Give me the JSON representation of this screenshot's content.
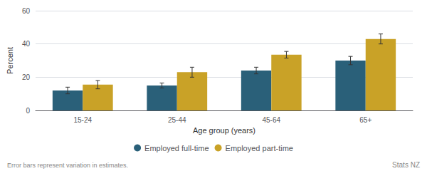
{
  "chart_data": {
    "type": "bar",
    "categories": [
      "15-24",
      "25-44",
      "45-64",
      "65+"
    ],
    "series": [
      {
        "name": "Employed full-time",
        "color": "#2a6079",
        "values": [
          12,
          15,
          24,
          30
        ],
        "errors": [
          2,
          1.5,
          2,
          2.5
        ]
      },
      {
        "name": "Employed part-time",
        "color": "#c9a227",
        "values": [
          15.5,
          23,
          33.5,
          43
        ],
        "errors": [
          2.5,
          3,
          2,
          3
        ]
      }
    ],
    "xlabel": "Age group (years)",
    "ylabel": "Percent",
    "ylim": [
      0,
      60
    ],
    "yticks": [
      0,
      20,
      40,
      60
    ],
    "grid": true,
    "legend": "bottom",
    "annotations": [
      "Error bars represent variation in estimates.",
      "Stats NZ"
    ]
  }
}
